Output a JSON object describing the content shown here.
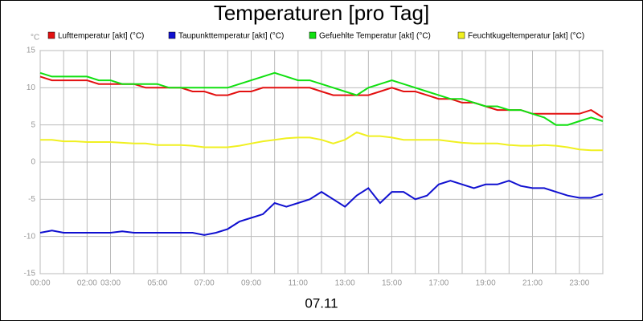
{
  "chart_data": {
    "type": "line",
    "title": "Temperaturen [pro Tag]",
    "y_unit": "°C",
    "x_label": "07.11",
    "x": [
      0,
      0.5,
      1,
      1.5,
      2,
      2.5,
      3,
      3.5,
      4,
      4.5,
      5,
      5.5,
      6,
      6.5,
      7,
      7.5,
      8,
      8.5,
      9,
      9.5,
      10,
      10.5,
      11,
      11.5,
      12,
      12.5,
      13,
      13.5,
      14,
      14.5,
      15,
      15.5,
      16,
      16.5,
      17,
      17.5,
      18,
      18.5,
      19,
      19.5,
      20,
      20.5,
      21,
      21.5,
      22,
      22.5,
      23,
      23.5,
      24
    ],
    "series": [
      {
        "name": "Lufttemperatur [akt] (°C)",
        "color": "#e31010",
        "values": [
          11.5,
          11,
          11,
          11,
          11,
          10.5,
          10.5,
          10.5,
          10.5,
          10,
          10,
          10,
          10,
          9.5,
          9.5,
          9,
          9,
          9.5,
          9.5,
          10,
          10,
          10,
          10,
          10,
          9.5,
          9,
          9,
          9,
          9,
          9.5,
          10,
          9.5,
          9.5,
          9,
          8.5,
          8.5,
          8,
          8,
          7.5,
          7,
          7,
          7,
          6.5,
          6.5,
          6.5,
          6.5,
          6.5,
          7,
          6
        ]
      },
      {
        "name": "Taupunkttemperatur [akt] (°C)",
        "color": "#1010d0",
        "values": [
          -9.5,
          -9.2,
          -9.5,
          -9.5,
          -9.5,
          -9.5,
          -9.5,
          -9.3,
          -9.5,
          -9.5,
          -9.5,
          -9.5,
          -9.5,
          -9.5,
          -9.8,
          -9.5,
          -9,
          -8,
          -7.5,
          -7,
          -5.5,
          -6,
          -5.5,
          -5,
          -4,
          -5,
          -6,
          -4.5,
          -3.5,
          -5.5,
          -4,
          -4,
          -5,
          -4.5,
          -3,
          -2.5,
          -3,
          -3.5,
          -3,
          -3,
          -2.5,
          -3.2,
          -3.5,
          -3.5,
          -4,
          -4.5,
          -4.8,
          -4.8,
          -4.3
        ]
      },
      {
        "name": "Gefuehlte Temperatur [akt] (°C)",
        "color": "#10e010",
        "values": [
          12,
          11.5,
          11.5,
          11.5,
          11.5,
          11,
          11,
          10.5,
          10.5,
          10.5,
          10.5,
          10,
          10,
          10,
          10,
          10,
          10,
          10.5,
          11,
          11.5,
          12,
          11.5,
          11,
          11,
          10.5,
          10,
          9.5,
          9,
          10,
          10.5,
          11,
          10.5,
          10,
          9.5,
          9,
          8.5,
          8.5,
          8,
          7.5,
          7.5,
          7,
          7,
          6.5,
          6,
          5,
          5,
          5.5,
          6,
          5.5
        ]
      },
      {
        "name": "Feuchtkugeltemperatur [akt] (°C)",
        "color": "#f0f020",
        "values": [
          3,
          3,
          2.8,
          2.8,
          2.7,
          2.7,
          2.7,
          2.6,
          2.5,
          2.5,
          2.3,
          2.3,
          2.3,
          2.2,
          2,
          2,
          2,
          2.2,
          2.5,
          2.8,
          3,
          3.2,
          3.3,
          3.3,
          3,
          2.5,
          3,
          4,
          3.5,
          3.5,
          3.3,
          3,
          3,
          3,
          3,
          2.8,
          2.6,
          2.5,
          2.5,
          2.5,
          2.3,
          2.2,
          2.2,
          2.3,
          2.2,
          2,
          1.7,
          1.6,
          1.6
        ]
      }
    ],
    "xlim": [
      0,
      24
    ],
    "xticks": [
      {
        "value": 0,
        "label": "00:00"
      },
      {
        "value": 2,
        "label": "02:00"
      },
      {
        "value": 3,
        "label": "03:00"
      },
      {
        "value": 5,
        "label": "05:00"
      },
      {
        "value": 7,
        "label": "07:00"
      },
      {
        "value": 9,
        "label": "09:00"
      },
      {
        "value": 11,
        "label": "11:00"
      },
      {
        "value": 13,
        "label": "13:00"
      },
      {
        "value": 15,
        "label": "15:00"
      },
      {
        "value": 17,
        "label": "17:00"
      },
      {
        "value": 19,
        "label": "19:00"
      },
      {
        "value": 21,
        "label": "21:00"
      },
      {
        "value": 23,
        "label": "23:00"
      }
    ],
    "xminorticks": [
      1,
      4,
      6,
      8,
      10,
      12,
      14,
      16,
      18,
      20,
      22,
      24
    ],
    "ylim": [
      -15,
      15
    ],
    "yticks": [
      -15,
      -10,
      -5,
      0,
      5,
      10,
      15
    ],
    "grid": true
  }
}
